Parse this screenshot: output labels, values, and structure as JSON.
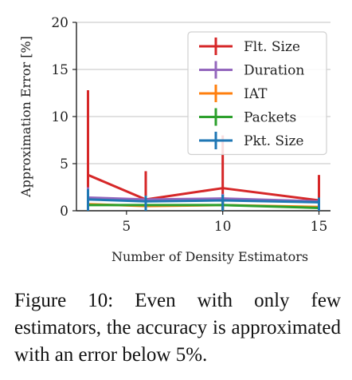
{
  "chart_data": {
    "type": "line",
    "xlabel": "Number of Density Estimators",
    "ylabel": "Approximation Error [%]",
    "xlim": [
      2.4,
      15.6
    ],
    "ylim": [
      0,
      20
    ],
    "xticks": [
      5,
      10,
      15
    ],
    "yticks": [
      0,
      5,
      10,
      15,
      20
    ],
    "grid": "horizontal",
    "legend_position": "top-right",
    "x": [
      3,
      6,
      10,
      15
    ],
    "series": [
      {
        "name": "Flt. Size",
        "color": "#d62728",
        "values": [
          3.8,
          1.2,
          2.4,
          1.1
        ],
        "err_low": [
          0,
          0,
          0,
          0
        ],
        "err_high": [
          12.8,
          4.2,
          8.0,
          3.8
        ]
      },
      {
        "name": "Duration",
        "color": "#9467bd",
        "values": [
          1.4,
          1.2,
          1.3,
          1.0
        ],
        "err_low": [
          0,
          0,
          0,
          0
        ],
        "err_high": [
          2.5,
          1.6,
          1.8,
          1.4
        ]
      },
      {
        "name": "IAT",
        "color": "#ff7f0e",
        "values": [
          0.7,
          0.5,
          0.6,
          0.4
        ],
        "err_low": [
          0,
          0,
          0,
          0
        ],
        "err_high": [
          1.2,
          0.9,
          1.0,
          0.8
        ]
      },
      {
        "name": "Packets",
        "color": "#2ca02c",
        "values": [
          0.6,
          0.6,
          0.6,
          0.3
        ],
        "err_low": [
          0,
          0,
          0,
          0
        ],
        "err_high": [
          1.0,
          0.9,
          1.0,
          0.6
        ]
      },
      {
        "name": "Pkt. Size",
        "color": "#1f77b4",
        "values": [
          1.2,
          1.0,
          1.1,
          0.9
        ],
        "err_low": [
          0,
          0,
          0,
          0
        ],
        "err_high": [
          2.3,
          1.6,
          1.7,
          1.4
        ]
      }
    ]
  },
  "caption": "Figure 10: Even with only few estimators, the accuracy is approximated with an error below 5%."
}
